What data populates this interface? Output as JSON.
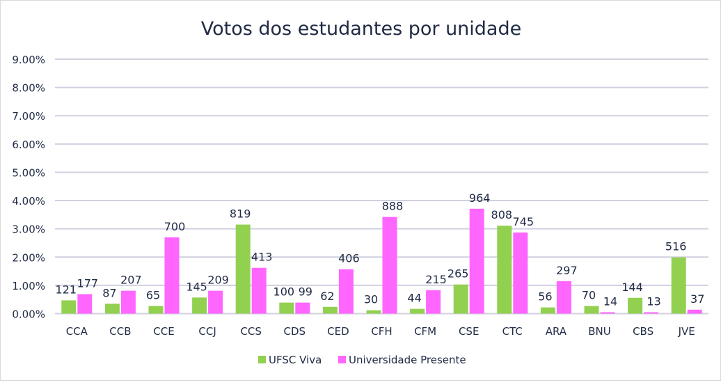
{
  "chart_data": {
    "type": "bar",
    "title": "Votos dos estudantes por unidade",
    "xlabel": "",
    "ylabel": "",
    "ylim": [
      0,
      9
    ],
    "y_ticks": [
      "0.00%",
      "1.00%",
      "2.00%",
      "3.00%",
      "4.00%",
      "5.00%",
      "6.00%",
      "7.00%",
      "8.00%",
      "9.00%"
    ],
    "grid": true,
    "legend_position": "bottom",
    "categories": [
      "CCA",
      "CCB",
      "CCE",
      "CCJ",
      "CCS",
      "CDS",
      "CED",
      "CFH",
      "CFM",
      "CSE",
      "CTC",
      "ARA",
      "BNU",
      "CBS",
      "JVE"
    ],
    "series": [
      {
        "name": "UFSC Viva",
        "color": "#92d050",
        "values": [
          0.47,
          0.35,
          0.27,
          0.57,
          3.15,
          0.39,
          0.24,
          0.12,
          0.17,
          1.03,
          3.11,
          0.22,
          0.27,
          0.56,
          1.99
        ],
        "labels": [
          "121",
          "87",
          "65",
          "145",
          "819",
          "100",
          "62",
          "30",
          "44",
          "265",
          "808",
          "56",
          "70",
          "144",
          "516"
        ]
      },
      {
        "name": "Universidade Presente",
        "color": "#ff66ff",
        "values": [
          0.69,
          0.81,
          2.7,
          0.81,
          1.62,
          0.39,
          1.57,
          3.42,
          0.83,
          3.71,
          2.87,
          1.15,
          0.05,
          0.05,
          0.14
        ],
        "labels": [
          "177",
          "207",
          "700",
          "209",
          "413",
          "99",
          "406",
          "888",
          "215",
          "964",
          "745",
          "297",
          "14",
          "13",
          "37"
        ]
      }
    ]
  }
}
